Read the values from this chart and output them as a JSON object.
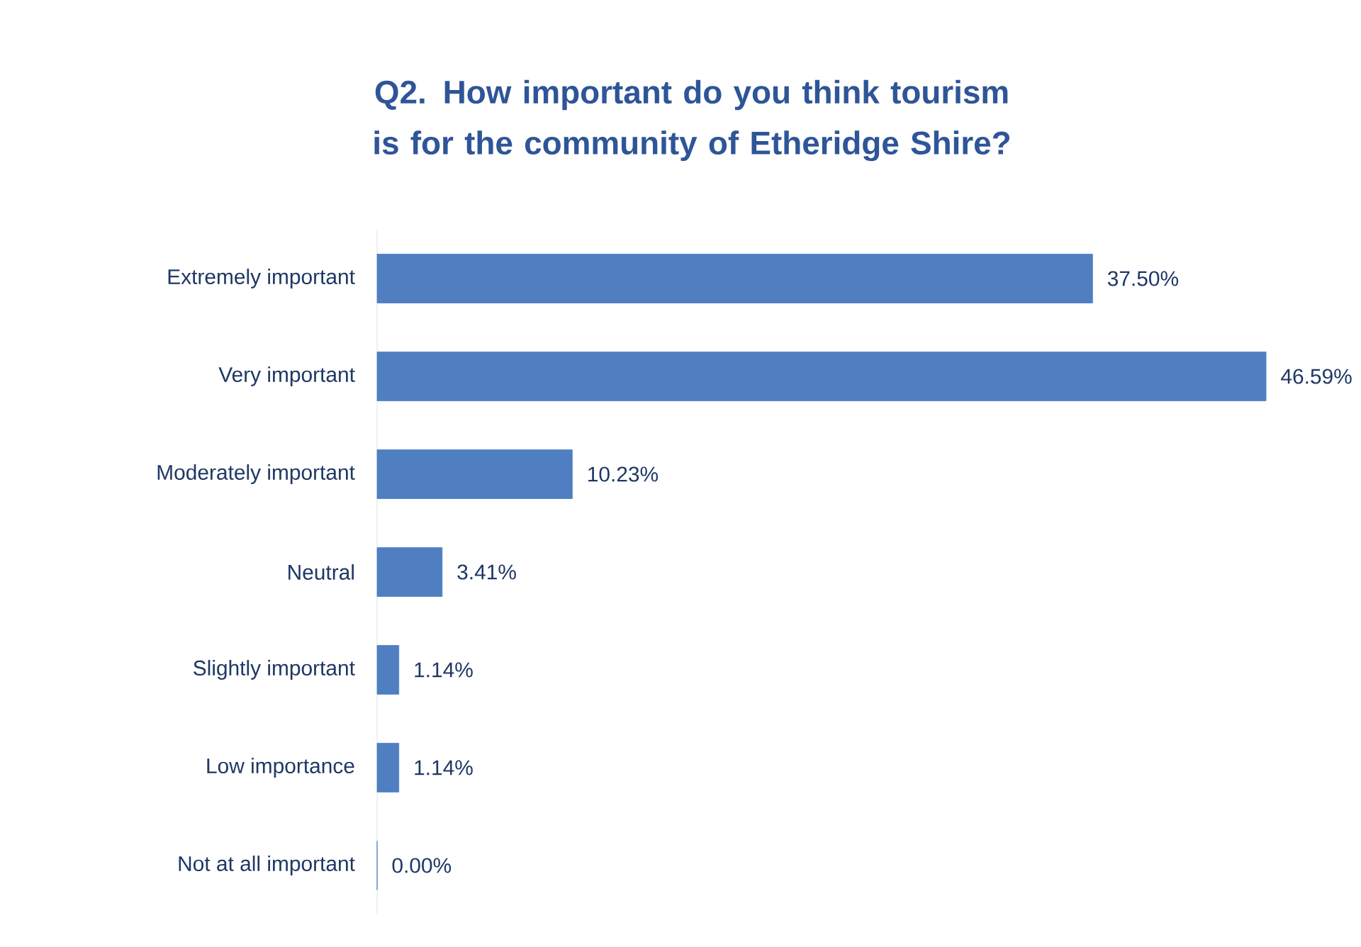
{
  "chart_data": {
    "type": "bar",
    "orientation": "horizontal",
    "title": "Q2. How important do you think tourism is for the community of Etheridge Shire?",
    "categories": [
      "Extremely important",
      "Very important",
      "Moderately important",
      "Neutral",
      "Slightly important",
      "Low importance",
      "Not at all important"
    ],
    "values": [
      37.5,
      46.59,
      10.23,
      3.41,
      1.14,
      1.14,
      0.0
    ],
    "value_labels": [
      "37.50%",
      "46.59%",
      "10.23%",
      "3.41%",
      "1.14%",
      "1.14%",
      "0.00%"
    ],
    "color": "#4f7fc1"
  }
}
